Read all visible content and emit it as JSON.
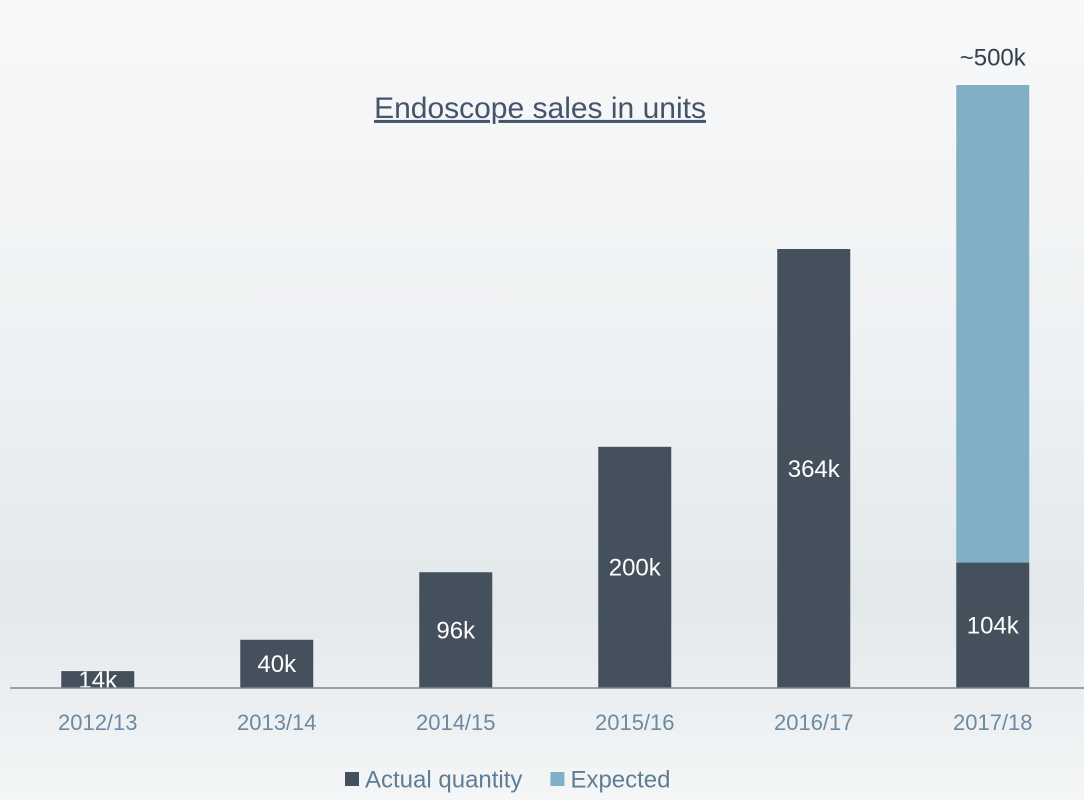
{
  "chart_data": {
    "type": "stacked_bar",
    "title": "Endoscope sales in units",
    "categories": [
      "2012/13",
      "2013/14",
      "2014/15",
      "2015/16",
      "2016/17",
      "2017/18"
    ],
    "series": [
      {
        "name": "Actual quantity",
        "color": "#44515c",
        "values": [
          14,
          40,
          96,
          200,
          364,
          104
        ],
        "value_labels": [
          "14k",
          "40k",
          "96k",
          "200k",
          "364k",
          "104k"
        ]
      },
      {
        "name": "Expected",
        "color": "#80afc6",
        "values": [
          null,
          null,
          null,
          null,
          null,
          396
        ]
      }
    ],
    "annotations": [
      "~500k"
    ]
  }
}
